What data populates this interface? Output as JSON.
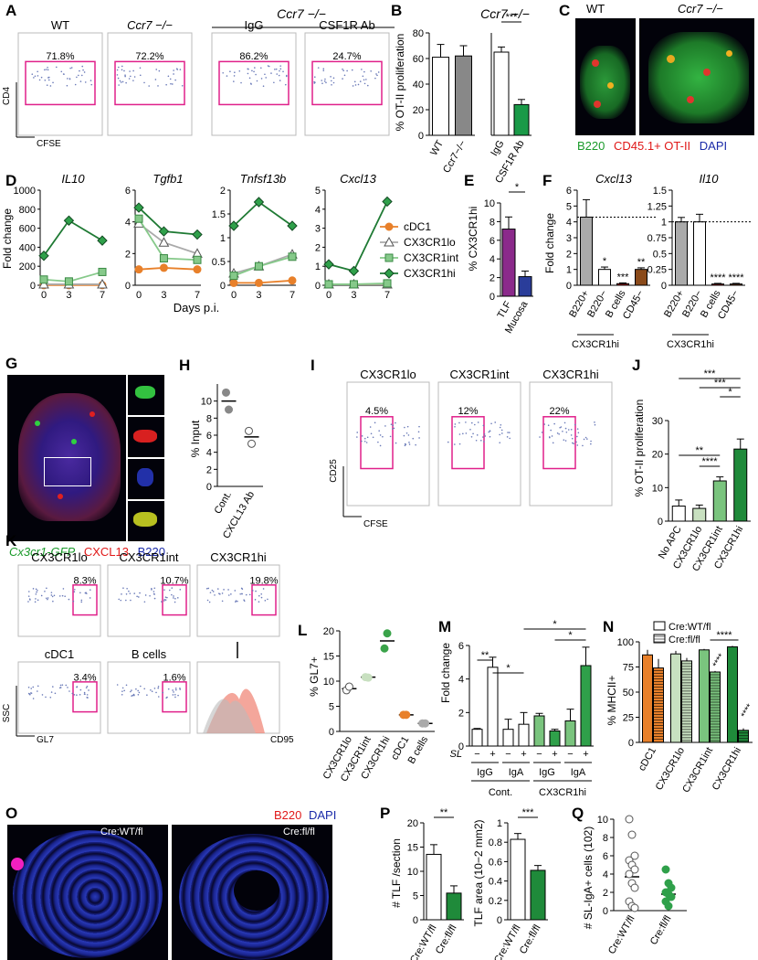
{
  "panels": {
    "A": {
      "label": "A",
      "plots": [
        {
          "title": "WT",
          "pct": "71.8%"
        },
        {
          "title": "Ccr7 −/−",
          "pct": "72.2%"
        },
        {
          "title": "IgG",
          "pct": "86.2%"
        },
        {
          "title": "CSF1R Ab",
          "pct": "24.7%"
        }
      ],
      "group_title": "Ccr7 −/−",
      "ylabel": "CD4",
      "xlabel": "CFSE"
    },
    "B": {
      "label": "B",
      "ylabel": "% OT-II proliferation",
      "right_title": "Ccr7 −/−",
      "sig": "***"
    },
    "C": {
      "label": "C",
      "left_title": "WT",
      "right_title": "Ccr7 −/−",
      "legend": [
        "B220",
        "CD45.1+ OT-II",
        "DAPI"
      ]
    },
    "D": {
      "label": "D",
      "xlabel": "Days p.i.",
      "ylabel": "Fold change",
      "titles": [
        "IL10",
        "Tgfb1",
        "Tnfsf13b",
        "Cxcl13"
      ],
      "legend": [
        "cDC1",
        "CX3CR1lo",
        "CX3CR1int",
        "CX3CR1hi"
      ]
    },
    "E": {
      "label": "E",
      "ylabel": "% CX3CR1hi",
      "sig": "*"
    },
    "F": {
      "label": "F",
      "titles": [
        "Cxcl13",
        "Il10"
      ],
      "ylabel": "Fold change",
      "group": "CX3CR1hi"
    },
    "G": {
      "label": "G",
      "legend": [
        "Cx3cr1-GFP",
        "CXCL13",
        "B220"
      ]
    },
    "H": {
      "label": "H",
      "ylabel": "% Input"
    },
    "I": {
      "label": "I",
      "plots": [
        {
          "title": "CX3CR1lo",
          "pct": "4.5%"
        },
        {
          "title": "CX3CR1int",
          "pct": "12%"
        },
        {
          "title": "CX3CR1hi",
          "pct": "22%"
        }
      ],
      "ylabel": "CD25",
      "xlabel": "CFSE"
    },
    "J": {
      "label": "J",
      "ylabel": "% OT-II proliferation",
      "sigs": [
        "***",
        "***",
        "*",
        "**",
        "****"
      ]
    },
    "K": {
      "label": "K",
      "plots": [
        {
          "title": "CX3CR1lo",
          "pct": "8.3%"
        },
        {
          "title": "CX3CR1int",
          "pct": "10.7%"
        },
        {
          "title": "CX3CR1hi",
          "pct": "19.8%"
        },
        {
          "title": "cDC1",
          "pct": "3.4%"
        },
        {
          "title": "B cells",
          "pct": "1.6%"
        }
      ],
      "ylabel": "SSC",
      "xlabel": "GL7",
      "hist_xlabel": "CD95"
    },
    "L": {
      "label": "L",
      "ylabel": "% GL7+"
    },
    "M": {
      "label": "M",
      "ylabel": "Fold change",
      "sl_label": "SL",
      "groups": [
        "Cont.",
        "CX3CR1hi"
      ],
      "subgroups": [
        "IgG",
        "IgA",
        "IgG",
        "IgA"
      ],
      "sigs": [
        "**",
        "*",
        "*",
        "*"
      ]
    },
    "N": {
      "label": "N",
      "ylabel": "% MHCII+",
      "legend": [
        "Cre:WT/fl",
        "Cre:fl/fl"
      ],
      "sigs": [
        "****",
        "****",
        "****"
      ]
    },
    "O": {
      "label": "O",
      "legend": [
        "B220",
        "DAPI"
      ],
      "left_title": "Cre:WT/fl",
      "right_title": "Cre:fl/fl"
    },
    "P": {
      "label": "P",
      "ylabels": [
        "# TLF /section",
        "TLF area (10−2 mm2)"
      ],
      "sigs": [
        "**",
        "***"
      ]
    },
    "Q": {
      "label": "Q",
      "ylabel": "# SL-IgA+ cells (102)"
    }
  },
  "chart_data": [
    {
      "type": "bar",
      "id": "B-left",
      "categories": [
        "WT",
        "Ccr7−/−"
      ],
      "values": [
        61,
        62
      ],
      "errors": [
        10,
        8
      ],
      "ylim": [
        0,
        80
      ],
      "ylabel": "% OT-II proliferation",
      "colors": [
        "#ffffff",
        "#888888"
      ]
    },
    {
      "type": "bar",
      "id": "B-right",
      "categories": [
        "IgG",
        "CSF1R Ab"
      ],
      "values": [
        65,
        24
      ],
      "errors": [
        4,
        4
      ],
      "ylim": [
        0,
        80
      ],
      "colors": [
        "#ffffff",
        "#1a9a48"
      ]
    },
    {
      "type": "line",
      "id": "D-IL10",
      "title": "IL10",
      "x": [
        0,
        3,
        7
      ],
      "ylim": [
        0,
        1000
      ],
      "ylabel": "Fold change",
      "xlabel": "Days p.i.",
      "series": [
        {
          "name": "cDC1",
          "values": [
            1,
            1,
            1
          ]
        },
        {
          "name": "CX3CR1lo",
          "values": [
            10,
            10,
            10
          ]
        },
        {
          "name": "CX3CR1int",
          "values": [
            60,
            40,
            140
          ]
        },
        {
          "name": "CX3CR1hi",
          "values": [
            310,
            680,
            470
          ]
        }
      ]
    },
    {
      "type": "line",
      "id": "D-Tgfb1",
      "title": "Tgfb1",
      "x": [
        0,
        3,
        7
      ],
      "ylim": [
        0,
        6
      ],
      "series": [
        {
          "name": "cDC1",
          "values": [
            1.0,
            1.1,
            1.0
          ]
        },
        {
          "name": "CX3CR1lo",
          "values": [
            3.9,
            2.7,
            2.0
          ]
        },
        {
          "name": "CX3CR1int",
          "values": [
            4.2,
            1.7,
            1.6
          ]
        },
        {
          "name": "CX3CR1hi",
          "values": [
            4.9,
            3.4,
            3.2
          ]
        }
      ]
    },
    {
      "type": "line",
      "id": "D-Tnfsf13b",
      "title": "Tnfsf13b",
      "x": [
        0,
        3,
        7
      ],
      "ylim": [
        0,
        2.0
      ],
      "series": [
        {
          "name": "cDC1",
          "values": [
            0.05,
            0.05,
            0.1
          ]
        },
        {
          "name": "CX3CR1lo",
          "values": [
            0.25,
            0.4,
            0.65
          ]
        },
        {
          "name": "CX3CR1int",
          "values": [
            0.2,
            0.4,
            0.6
          ]
        },
        {
          "name": "CX3CR1hi",
          "values": [
            1.25,
            1.75,
            1.25
          ]
        }
      ]
    },
    {
      "type": "line",
      "id": "D-Cxcl13",
      "title": "Cxcl13",
      "x": [
        0,
        3,
        7
      ],
      "ylim": [
        0,
        5
      ],
      "series": [
        {
          "name": "cDC1",
          "values": [
            0.05,
            0.05,
            0.05
          ]
        },
        {
          "name": "CX3CR1lo",
          "values": [
            0.05,
            0.05,
            0.05
          ]
        },
        {
          "name": "CX3CR1int",
          "values": [
            0.05,
            0.05,
            0.1
          ]
        },
        {
          "name": "CX3CR1hi",
          "values": [
            1.1,
            0.75,
            4.4
          ]
        }
      ]
    },
    {
      "type": "bar",
      "id": "E",
      "categories": [
        "TLF",
        "Mucosa"
      ],
      "values": [
        7.2,
        2.1
      ],
      "errors": [
        1.3,
        0.6
      ],
      "ylim": [
        0,
        10
      ],
      "ylabel": "% CX3CR1hi",
      "colors": [
        "#8b2a8b",
        "#2a3d9a"
      ]
    },
    {
      "type": "bar",
      "id": "F-Cxcl13",
      "title": "Cxcl13",
      "categories": [
        "B220+",
        "B220−",
        "B cells",
        "CD45−"
      ],
      "values": [
        4.3,
        1.0,
        0.1,
        1.0
      ],
      "errors": [
        1.1,
        0.15,
        0.05,
        0.1
      ],
      "ylim": [
        0,
        6
      ],
      "ylabel": "Fold change",
      "sigs": [
        "",
        "*",
        "***",
        "**"
      ]
    },
    {
      "type": "bar",
      "id": "F-Il10",
      "title": "Il10",
      "categories": [
        "B220+",
        "B220−",
        "B cells",
        "CD45−"
      ],
      "values": [
        1.0,
        1.0,
        0.02,
        0.02
      ],
      "errors": [
        0.07,
        0.12,
        0.01,
        0.01
      ],
      "ylim": [
        0,
        1.5
      ],
      "sigs": [
        "",
        "",
        "****",
        "****"
      ]
    },
    {
      "type": "scatter",
      "id": "H",
      "categories": [
        "Cont.",
        "CXCL13 Ab"
      ],
      "points": [
        [
          11,
          9
        ],
        [
          6.5,
          5
        ]
      ],
      "means": [
        10,
        5.8
      ],
      "ylim": [
        0,
        12
      ],
      "ylabel": "% Input"
    },
    {
      "type": "bar",
      "id": "J",
      "categories": [
        "No APC",
        "CX3CR1lo",
        "CX3CR1int",
        "CX3CR1hi"
      ],
      "values": [
        4.5,
        3.8,
        12,
        21.5
      ],
      "errors": [
        1.8,
        1.0,
        1.2,
        3.0
      ],
      "ylim": [
        0,
        30
      ],
      "ylabel": "% OT-II proliferation"
    },
    {
      "type": "scatter",
      "id": "L",
      "categories": [
        "CX3CR1lo",
        "CX3CR1int",
        "CX3CR1hi",
        "cDC1",
        "B cells"
      ],
      "points": [
        [
          8.2,
          8.9
        ],
        [
          10.8,
          10.7
        ],
        [
          16.5,
          19.5
        ],
        [
          3.3,
          3.3
        ],
        [
          1.6,
          1.6
        ]
      ],
      "means": [
        8.5,
        10.8,
        18,
        3.3,
        1.6
      ],
      "ylim": [
        0,
        20
      ],
      "ylabel": "% GL7+"
    },
    {
      "type": "bar",
      "id": "M",
      "categories": [
        "Cont. IgG −",
        "Cont. IgG +",
        "Cont. IgA −",
        "Cont. IgA +",
        "CX3CR1hi IgG −",
        "CX3CR1hi IgG +",
        "CX3CR1hi IgA −",
        "CX3CR1hi IgA +"
      ],
      "values": [
        1.0,
        4.7,
        1.0,
        1.3,
        1.8,
        0.9,
        1.5,
        4.8
      ],
      "errors": [
        0.05,
        0.6,
        0.6,
        0.7,
        0.15,
        0.1,
        0.7,
        1.1
      ],
      "ylim": [
        0,
        6
      ],
      "ylabel": "Fold change"
    },
    {
      "type": "bar",
      "id": "N",
      "categories": [
        "cDC1",
        "CX3CR1lo",
        "CX3CR1int",
        "CX3CR1hi"
      ],
      "series": [
        {
          "name": "Cre:WT/fl",
          "values": [
            87,
            88,
            92,
            95
          ],
          "errors": [
            5,
            3,
            1,
            1
          ]
        },
        {
          "name": "Cre:fl/fl",
          "values": [
            74,
            81,
            70,
            12
          ],
          "errors": [
            9,
            3,
            1,
            2
          ]
        }
      ],
      "ylim": [
        0,
        100
      ],
      "ylabel": "% MHCII+"
    },
    {
      "type": "bar",
      "id": "P-count",
      "categories": [
        "Cre:WT/fl",
        "Cre:fl/fl"
      ],
      "values": [
        13.5,
        5.5
      ],
      "errors": [
        2.0,
        1.5
      ],
      "ylim": [
        0,
        20
      ],
      "ylabel": "# TLF /section"
    },
    {
      "type": "bar",
      "id": "P-area",
      "categories": [
        "Cre:WT/fl",
        "Cre:fl/fl"
      ],
      "values": [
        0.83,
        0.51
      ],
      "errors": [
        0.06,
        0.05
      ],
      "ylim": [
        0,
        1.0
      ],
      "ylabel": "TLF area (10−2 mm2)"
    },
    {
      "type": "scatter",
      "id": "Q",
      "categories": [
        "Cre:WT/fl",
        "Cre:fl/fl"
      ],
      "points": [
        [
          10,
          8.3,
          6,
          5.5,
          5,
          4.5,
          4,
          3,
          2.5,
          1,
          0.5,
          0.3
        ],
        [
          4.5,
          3,
          2.5,
          2,
          1.8,
          1.5,
          1,
          0.5
        ]
      ],
      "means": [
        3.7,
        1.8
      ],
      "ylim": [
        0,
        10
      ],
      "ylabel": "# SL-IgA+ cells (102)"
    }
  ]
}
